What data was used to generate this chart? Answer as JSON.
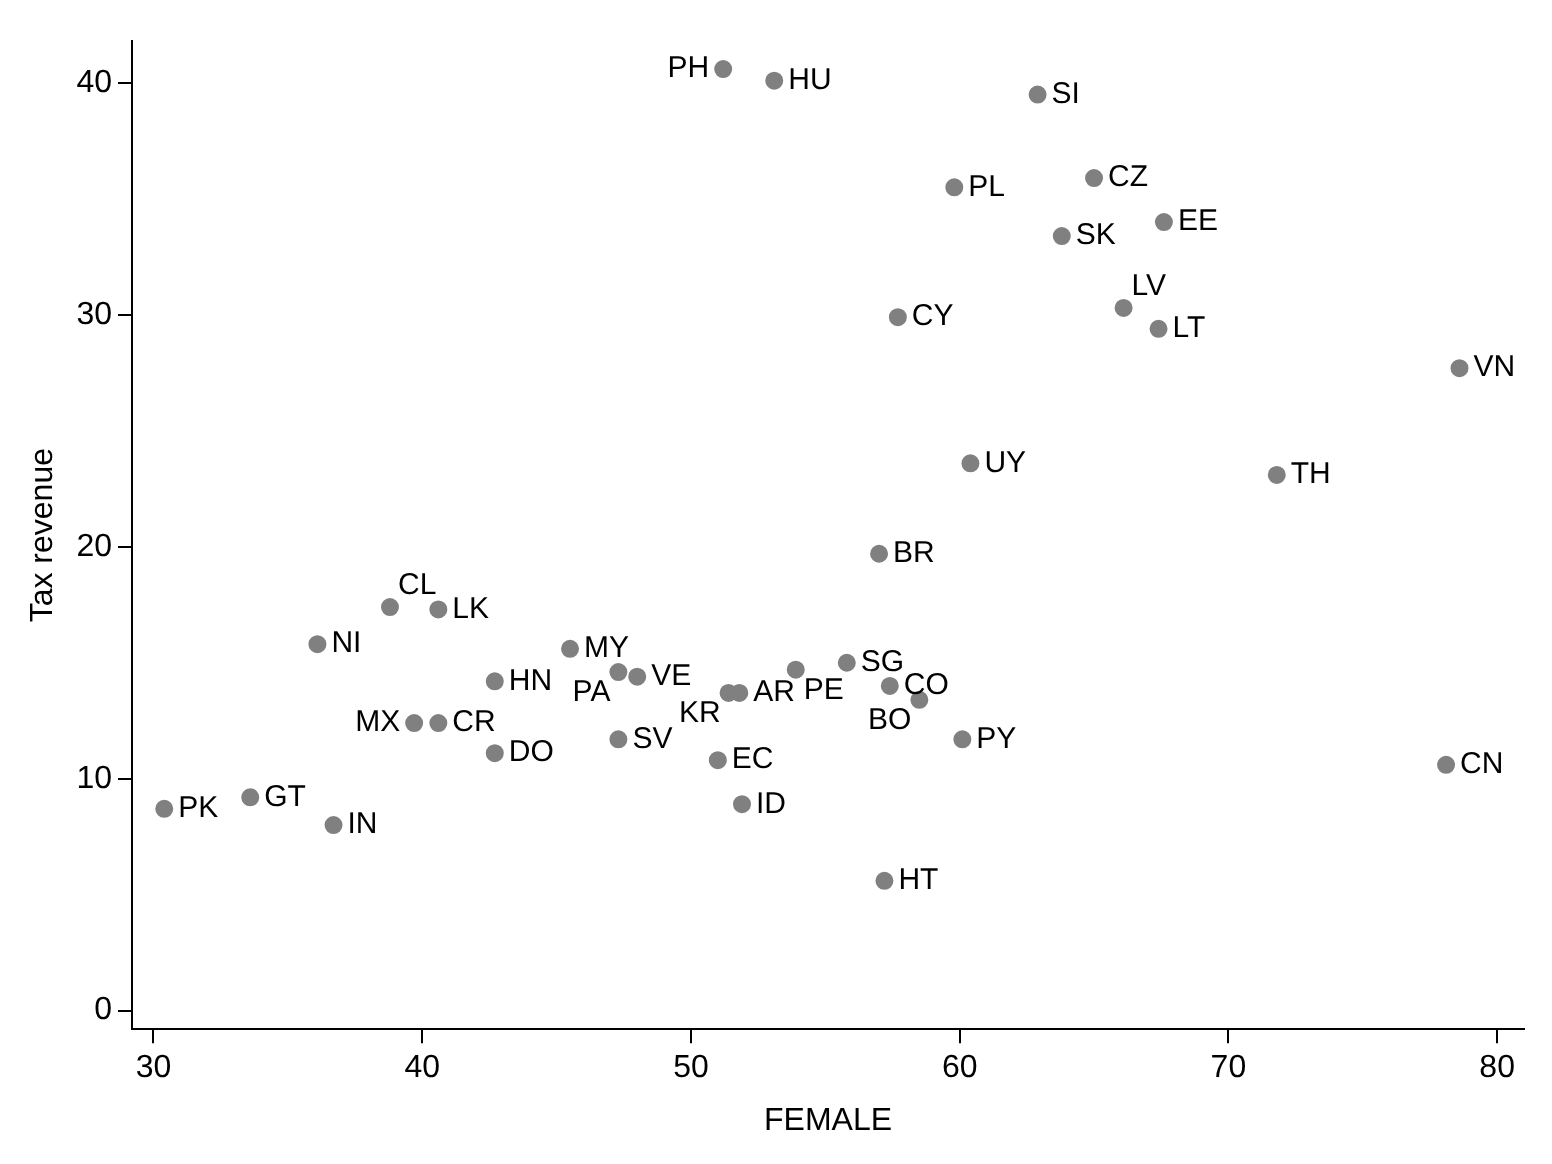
{
  "chart_data": {
    "type": "scatter",
    "xlabel": "FEMALE",
    "ylabel": "Tax revenue",
    "color": "#808080",
    "marker": "circle",
    "grid": false,
    "legend": false,
    "xlim": [
      29.2,
      81
    ],
    "xticks": [
      30,
      40,
      50,
      60,
      70,
      80
    ],
    "ylim": [
      -0.8,
      41.8
    ],
    "yticks": [
      0,
      10,
      20,
      30,
      40
    ],
    "x": [
      51.2,
      53.1,
      62.9,
      59.8,
      65.0,
      63.8,
      67.6,
      57.7,
      66.1,
      67.4,
      78.6,
      60.4,
      71.8,
      57.0,
      38.8,
      40.6,
      36.1,
      45.5,
      47.3,
      48.0,
      53.9,
      55.8,
      57.4,
      51.8,
      51.4,
      58.5,
      42.7,
      39.7,
      40.6,
      42.7,
      47.3,
      51.0,
      60.1,
      78.1,
      51.9,
      57.2,
      30.4,
      33.6,
      36.7
    ],
    "values": [
      40.6,
      40.1,
      39.5,
      35.5,
      35.9,
      33.4,
      34.0,
      29.9,
      30.3,
      29.4,
      27.7,
      23.6,
      23.1,
      19.7,
      17.4,
      17.3,
      15.8,
      15.6,
      14.6,
      14.4,
      14.7,
      15.0,
      14.0,
      13.7,
      13.7,
      13.4,
      14.2,
      12.4,
      12.4,
      11.1,
      11.7,
      10.8,
      11.7,
      10.6,
      8.9,
      5.6,
      8.7,
      9.2,
      8.0
    ],
    "annotations": [
      {
        "text": "PH",
        "x": 51.2,
        "y": 40.6
      },
      {
        "text": "HU",
        "x": 53.1,
        "y": 40.1
      },
      {
        "text": "SI",
        "x": 62.9,
        "y": 39.5
      },
      {
        "text": "PL",
        "x": 59.8,
        "y": 35.5
      },
      {
        "text": "CZ",
        "x": 65.0,
        "y": 35.9
      },
      {
        "text": "SK",
        "x": 63.8,
        "y": 33.4
      },
      {
        "text": "EE",
        "x": 67.6,
        "y": 34.0
      },
      {
        "text": "CY",
        "x": 57.7,
        "y": 29.9
      },
      {
        "text": "LV",
        "x": 66.1,
        "y": 30.3
      },
      {
        "text": "LT",
        "x": 67.4,
        "y": 29.4
      },
      {
        "text": "VN",
        "x": 78.6,
        "y": 27.7
      },
      {
        "text": "UY",
        "x": 60.4,
        "y": 23.6
      },
      {
        "text": "TH",
        "x": 71.8,
        "y": 23.1
      },
      {
        "text": "BR",
        "x": 57.0,
        "y": 19.7
      },
      {
        "text": "CL",
        "x": 38.8,
        "y": 17.4
      },
      {
        "text": "LK",
        "x": 40.6,
        "y": 17.3
      },
      {
        "text": "NI",
        "x": 36.1,
        "y": 15.8
      },
      {
        "text": "MY",
        "x": 45.5,
        "y": 15.6
      },
      {
        "text": "PA",
        "x": 47.3,
        "y": 14.6
      },
      {
        "text": "VE",
        "x": 48.0,
        "y": 14.4
      },
      {
        "text": "PE",
        "x": 53.9,
        "y": 14.7
      },
      {
        "text": "SG",
        "x": 55.8,
        "y": 15.0
      },
      {
        "text": "CO",
        "x": 57.4,
        "y": 14.0
      },
      {
        "text": "AR",
        "x": 51.8,
        "y": 13.7
      },
      {
        "text": "KR",
        "x": 51.4,
        "y": 13.7
      },
      {
        "text": "BO",
        "x": 58.5,
        "y": 13.4
      },
      {
        "text": "HN",
        "x": 42.7,
        "y": 14.2
      },
      {
        "text": "MX",
        "x": 39.7,
        "y": 12.4
      },
      {
        "text": "CR",
        "x": 40.6,
        "y": 12.4
      },
      {
        "text": "DO",
        "x": 42.7,
        "y": 11.1
      },
      {
        "text": "SV",
        "x": 47.3,
        "y": 11.7
      },
      {
        "text": "EC",
        "x": 51.0,
        "y": 10.8
      },
      {
        "text": "PY",
        "x": 60.1,
        "y": 11.7
      },
      {
        "text": "CN",
        "x": 78.1,
        "y": 10.6
      },
      {
        "text": "ID",
        "x": 51.9,
        "y": 8.9
      },
      {
        "text": "HT",
        "x": 57.2,
        "y": 5.6
      },
      {
        "text": "PK",
        "x": 30.4,
        "y": 8.7
      },
      {
        "text": "GT",
        "x": 33.6,
        "y": 9.2
      },
      {
        "text": "IN",
        "x": 36.7,
        "y": 8.0
      }
    ]
  }
}
